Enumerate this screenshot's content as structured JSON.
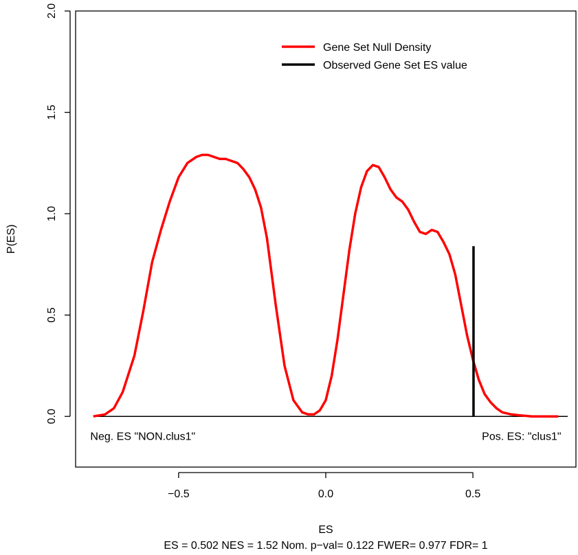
{
  "chart_data": {
    "type": "line",
    "title": "",
    "xlabel": "ES",
    "ylabel": "P(ES)",
    "subtitle": "ES = 0.502  NES = 1.52 Nom. p−val= 0.122 FWER= 0.977 FDR= 1",
    "xlim": [
      -0.85,
      0.85
    ],
    "ylim": [
      -0.25,
      2.0
    ],
    "x_ticks": [
      -0.5,
      0.0,
      0.5
    ],
    "x_tick_labels": [
      "−0.5",
      "0.0",
      "0.5"
    ],
    "y_ticks": [
      0.0,
      0.5,
      1.0,
      1.5,
      2.0
    ],
    "y_tick_labels": [
      "0.0",
      "0.5",
      "1.0",
      "1.5",
      "2.0"
    ],
    "grid": false,
    "legend_position": "top-right",
    "legend": [
      {
        "label": "Gene Set Null Density",
        "color": "#ff0000"
      },
      {
        "label": "Observed Gene Set ES value",
        "color": "#000000"
      }
    ],
    "series": [
      {
        "name": "Gene Set Null Density",
        "color": "#ff0000",
        "x": [
          -0.79,
          -0.75,
          -0.72,
          -0.69,
          -0.65,
          -0.62,
          -0.59,
          -0.56,
          -0.53,
          -0.5,
          -0.47,
          -0.44,
          -0.42,
          -0.4,
          -0.38,
          -0.36,
          -0.34,
          -0.32,
          -0.3,
          -0.28,
          -0.26,
          -0.24,
          -0.22,
          -0.2,
          -0.17,
          -0.14,
          -0.11,
          -0.08,
          -0.06,
          -0.04,
          -0.02,
          0.0,
          0.02,
          0.04,
          0.06,
          0.08,
          0.1,
          0.12,
          0.14,
          0.16,
          0.18,
          0.2,
          0.22,
          0.24,
          0.26,
          0.28,
          0.3,
          0.32,
          0.34,
          0.36,
          0.38,
          0.4,
          0.42,
          0.44,
          0.46,
          0.48,
          0.5,
          0.52,
          0.54,
          0.56,
          0.58,
          0.6,
          0.63,
          0.66,
          0.7,
          0.74,
          0.79
        ],
        "values": [
          0.0,
          0.01,
          0.04,
          0.12,
          0.3,
          0.52,
          0.76,
          0.92,
          1.06,
          1.18,
          1.25,
          1.28,
          1.29,
          1.29,
          1.28,
          1.27,
          1.27,
          1.26,
          1.25,
          1.22,
          1.18,
          1.12,
          1.03,
          0.88,
          0.55,
          0.25,
          0.08,
          0.02,
          0.01,
          0.01,
          0.03,
          0.08,
          0.2,
          0.38,
          0.6,
          0.82,
          1.0,
          1.13,
          1.21,
          1.24,
          1.23,
          1.18,
          1.12,
          1.08,
          1.06,
          1.02,
          0.96,
          0.91,
          0.9,
          0.92,
          0.91,
          0.86,
          0.8,
          0.7,
          0.55,
          0.4,
          0.28,
          0.18,
          0.11,
          0.07,
          0.04,
          0.02,
          0.01,
          0.005,
          0.0,
          0.0,
          0.0
        ]
      }
    ],
    "observed_es": 0.502,
    "observed_es_height": 0.84,
    "baseline": 0.0,
    "annotations": [
      {
        "text": "Neg. ES \"NON.clus1\"",
        "x": -0.8,
        "y": -0.1,
        "align": "start"
      },
      {
        "text": "Pos. ES: \"clus1\"",
        "x": 0.8,
        "y": -0.1,
        "align": "end"
      }
    ]
  }
}
